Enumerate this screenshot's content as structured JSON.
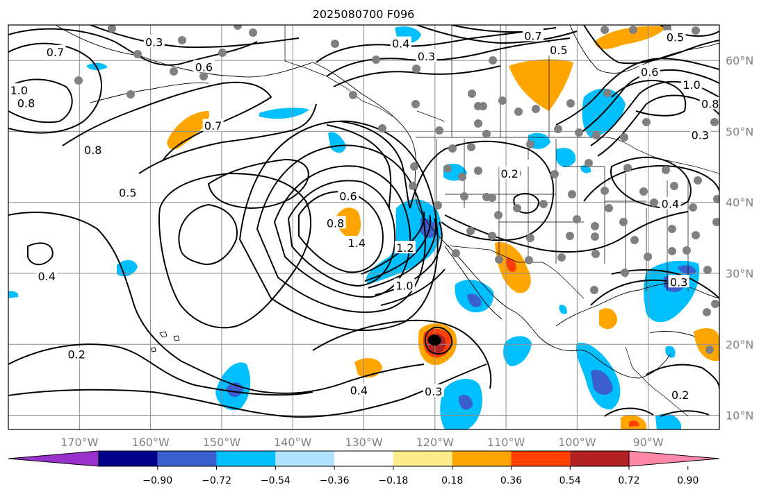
{
  "title": "2025080700 F096",
  "map": {
    "extent": {
      "lon_min": -180,
      "lon_max": -80,
      "lat_min": 8,
      "lat_max": 65
    },
    "lon_ticks": [
      {
        "lon": -170,
        "label": "170°W"
      },
      {
        "lon": -160,
        "label": "160°W"
      },
      {
        "lon": -150,
        "label": "150°W"
      },
      {
        "lon": -140,
        "label": "140°W"
      },
      {
        "lon": -130,
        "label": "130°W"
      },
      {
        "lon": -120,
        "label": "120°W"
      },
      {
        "lon": -110,
        "label": "110°W"
      },
      {
        "lon": -100,
        "label": "100°W"
      },
      {
        "lon": -90,
        "label": "90°W"
      }
    ],
    "lat_ticks": [
      {
        "lat": 60,
        "label": "60°N"
      },
      {
        "lat": 50,
        "label": "50°N"
      },
      {
        "lat": 40,
        "label": "40°N"
      },
      {
        "lat": 30,
        "label": "30°N"
      },
      {
        "lat": 20,
        "label": "20°N"
      },
      {
        "lat": 10,
        "label": "10°N"
      }
    ]
  },
  "colorbar": {
    "colors": [
      "#9932cc",
      "#00008b",
      "#3a5fcd",
      "#00bfff",
      "#b0e2ff",
      "#ffffff",
      "#fdec8c",
      "#ffa500",
      "#ff4000",
      "#b22222",
      "#ff88aa"
    ],
    "tick_labels": [
      "−0.90",
      "−0.72",
      "−0.54",
      "−0.36",
      "−0.18",
      "0.18",
      "0.36",
      "0.54",
      "0.72",
      "0.90"
    ]
  },
  "contour_labels": [
    {
      "text": "0.3",
      "lon": -159.5,
      "lat": 62.6
    },
    {
      "text": "0.6",
      "lon": -152.5,
      "lat": 59.1
    },
    {
      "text": "0.7",
      "lon": -173.4,
      "lat": 61.2
    },
    {
      "text": "1.0",
      "lon": -178.5,
      "lat": 55.8
    },
    {
      "text": "0.8",
      "lon": -177.5,
      "lat": 54.0
    },
    {
      "text": "0.7",
      "lon": -151.2,
      "lat": 50.8
    },
    {
      "text": "0.8",
      "lon": -168.1,
      "lat": 47.4
    },
    {
      "text": "0.5",
      "lon": -163.2,
      "lat": 41.4
    },
    {
      "text": "0.4",
      "lon": -174.6,
      "lat": 29.6
    },
    {
      "text": "0.2",
      "lon": -170.4,
      "lat": 18.6
    },
    {
      "text": "0.4",
      "lon": -130.7,
      "lat": 13.5
    },
    {
      "text": "0.3",
      "lon": -120.2,
      "lat": 13.4
    },
    {
      "text": "1.0",
      "lon": -124.3,
      "lat": 28.3
    },
    {
      "text": "0.4",
      "lon": -124.8,
      "lat": 62.4
    },
    {
      "text": "0.3",
      "lon": -121.2,
      "lat": 60.6
    },
    {
      "text": "0.7",
      "lon": -106.2,
      "lat": 63.5
    },
    {
      "text": "0.5",
      "lon": -102.6,
      "lat": 61.5
    },
    {
      "text": "0.5",
      "lon": -86.2,
      "lat": 63.3
    },
    {
      "text": "0.6",
      "lon": -89.8,
      "lat": 58.4
    },
    {
      "text": "1.0",
      "lon": -83.9,
      "lat": 56.6
    },
    {
      "text": "0.8",
      "lon": -81.3,
      "lat": 53.9
    },
    {
      "text": "0.3",
      "lon": -82.7,
      "lat": 49.5
    },
    {
      "text": "0.2",
      "lon": -109.5,
      "lat": 44.1
    },
    {
      "text": "0.4",
      "lon": -86.9,
      "lat": 39.8
    },
    {
      "text": "0.3",
      "lon": -85.7,
      "lat": 28.8
    },
    {
      "text": "0.2",
      "lon": -85.5,
      "lat": 12.9
    },
    {
      "text": "0.6",
      "lon": -132.2,
      "lat": 40.9
    },
    {
      "text": "0.8",
      "lon": -134.0,
      "lat": 37.1
    },
    {
      "text": "1.4",
      "lon": -131.0,
      "lat": 34.3
    },
    {
      "text": "1.2",
      "lon": -124.2,
      "lat": 33.6
    }
  ]
}
